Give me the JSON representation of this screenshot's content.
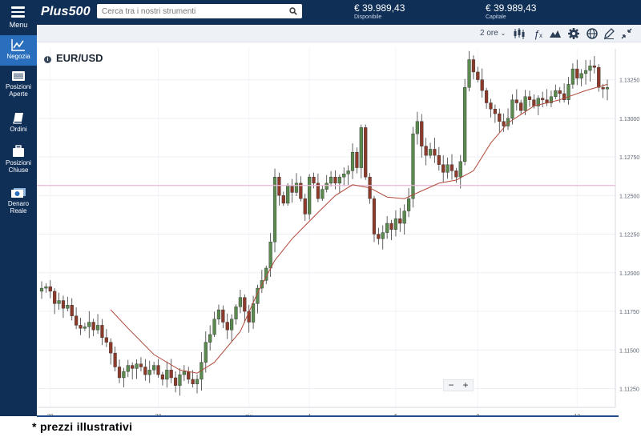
{
  "header": {
    "menu_label": "Menu",
    "logo": "Plus500",
    "search_placeholder": "Cerca tra i nostri strumenti",
    "available": {
      "value": "€ 39.989,43",
      "label": "Disponibile"
    },
    "equity": {
      "value": "€ 39.989,43",
      "label": "Capitale"
    }
  },
  "sidebar": {
    "items": [
      {
        "label": "Negozia",
        "icon": "chart-line-icon",
        "active": true
      },
      {
        "label": "Posizioni Aperte",
        "icon": "list-icon",
        "active": false
      },
      {
        "label": "Ordini",
        "icon": "book-icon",
        "active": false
      },
      {
        "label": "Posizioni Chiuse",
        "icon": "briefcase-icon",
        "active": false
      },
      {
        "label": "Denaro Reale",
        "icon": "money-icon",
        "active": false
      }
    ]
  },
  "toolbar": {
    "timeframe": "2 ore",
    "icons": [
      "candlestick-icon",
      "function-icon",
      "mountain-icon",
      "gear-icon",
      "globe-icon",
      "pencil-icon",
      "collapse-icon"
    ]
  },
  "chart": {
    "instrument": "EUR/USD",
    "zoom_minus": "−",
    "zoom_plus": "+"
  },
  "footnote": "* prezzi illustrativi",
  "colors": {
    "navy": "#0f2f57",
    "active": "#2a6fbd",
    "up": "#5a8a4e",
    "down": "#8e3a2a",
    "ma": "#b04a3a",
    "level": "#e7b9d8"
  },
  "chart_data": {
    "type": "candlestick",
    "x_ticks": [
      "28",
      "30",
      "giu",
      "4",
      "6",
      "8",
      "12"
    ],
    "y_ticks": [
      "1.13250",
      "1.13000",
      "1.12750",
      "1.12500",
      "1.12250",
      "1.12000",
      "1.11750",
      "1.11500",
      "1.11250"
    ],
    "ylim": [
      1.1118,
      1.1345
    ],
    "horizontal_level": 1.12565,
    "close": [
      1.119,
      1.1191,
      1.1188,
      1.118,
      1.1182,
      1.1177,
      1.1179,
      1.1172,
      1.1166,
      1.1164,
      1.1165,
      1.1168,
      1.1163,
      1.1166,
      1.1158,
      1.1155,
      1.1148,
      1.1139,
      1.1132,
      1.1136,
      1.114,
      1.1138,
      1.1141,
      1.1139,
      1.1134,
      1.1137,
      1.114,
      1.1134,
      1.1131,
      1.1137,
      1.1132,
      1.1127,
      1.1134,
      1.1136,
      1.1131,
      1.1128,
      1.1131,
      1.1142,
      1.1155,
      1.116,
      1.117,
      1.1176,
      1.1168,
      1.1163,
      1.117,
      1.1178,
      1.1184,
      1.1175,
      1.1168,
      1.118,
      1.119,
      1.1195,
      1.1203,
      1.122,
      1.1262,
      1.125,
      1.1245,
      1.1256,
      1.1252,
      1.1258,
      1.1248,
      1.1238,
      1.1262,
      1.1258,
      1.1248,
      1.1254,
      1.1258,
      1.1262,
      1.1258,
      1.1262,
      1.1264,
      1.1266,
      1.1278,
      1.1268,
      1.1294,
      1.1262,
      1.1248,
      1.1225,
      1.1222,
      1.1226,
      1.1232,
      1.1228,
      1.1235,
      1.1232,
      1.124,
      1.1248,
      1.129,
      1.1298,
      1.1282,
      1.1276,
      1.128,
      1.1276,
      1.127,
      1.1265,
      1.127,
      1.1266,
      1.1262,
      1.1272,
      1.132,
      1.1338,
      1.133,
      1.1325,
      1.1318,
      1.131,
      1.1306,
      1.1303,
      1.1298,
      1.1295,
      1.13,
      1.1312,
      1.131,
      1.1305,
      1.1314,
      1.1312,
      1.1308,
      1.1313,
      1.1312,
      1.131,
      1.1314,
      1.1318,
      1.1316,
      1.1312,
      1.1322,
      1.1332,
      1.1326,
      1.1329,
      1.1331,
      1.1334,
      1.1333,
      1.132,
      1.1319,
      1.132
    ],
    "ma": [
      [
        16,
        1.1176
      ],
      [
        20,
        1.1164
      ],
      [
        26,
        1.1147
      ],
      [
        32,
        1.1137
      ],
      [
        36,
        1.1135
      ],
      [
        40,
        1.1142
      ],
      [
        46,
        1.1162
      ],
      [
        50,
        1.1187
      ],
      [
        54,
        1.1208
      ],
      [
        58,
        1.1222
      ],
      [
        64,
        1.1239
      ],
      [
        68,
        1.125
      ],
      [
        72,
        1.1257
      ],
      [
        76,
        1.1255
      ],
      [
        80,
        1.1249
      ],
      [
        84,
        1.1248
      ],
      [
        88,
        1.1253
      ],
      [
        92,
        1.1258
      ],
      [
        96,
        1.126
      ],
      [
        100,
        1.1266
      ],
      [
        104,
        1.1284
      ],
      [
        108,
        1.1297
      ],
      [
        114,
        1.1308
      ],
      [
        120,
        1.1312
      ],
      [
        126,
        1.1318
      ],
      [
        131,
        1.1322
      ]
    ]
  }
}
